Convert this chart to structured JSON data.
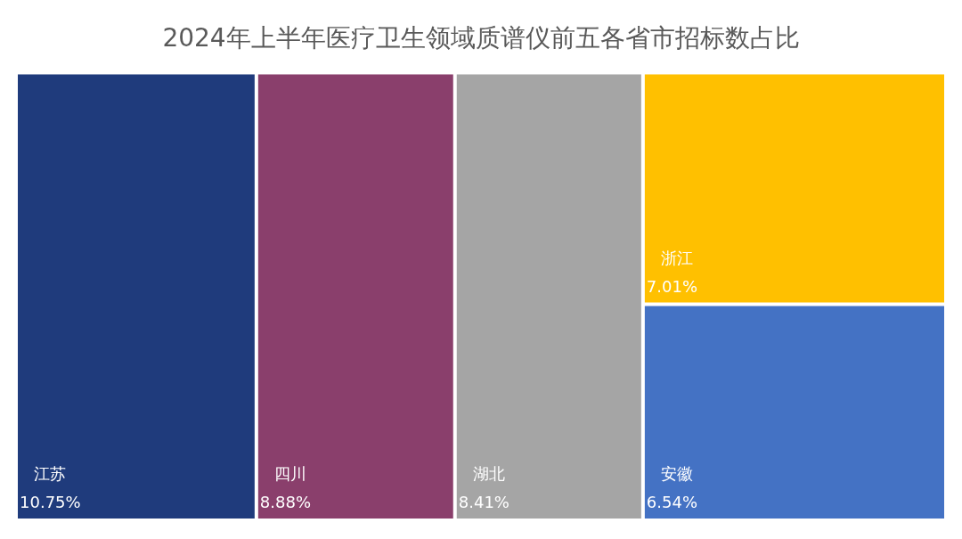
{
  "chart_data": {
    "type": "other",
    "title": "2024年上半年医疗卫生领域质谱仪前五各省市招标数占比",
    "categories": [
      "江苏",
      "四川",
      "湖北",
      "浙江",
      "安徽"
    ],
    "values": [
      10.75,
      8.88,
      8.41,
      7.01,
      6.54
    ],
    "value_labels": [
      "10.75%",
      "8.88%",
      "8.41%",
      "7.01%",
      "6.54%"
    ],
    "colors": [
      "#1f3b7c",
      "#8a3f6c",
      "#a5a5a5",
      "#ffc000",
      "#4472c4"
    ]
  }
}
